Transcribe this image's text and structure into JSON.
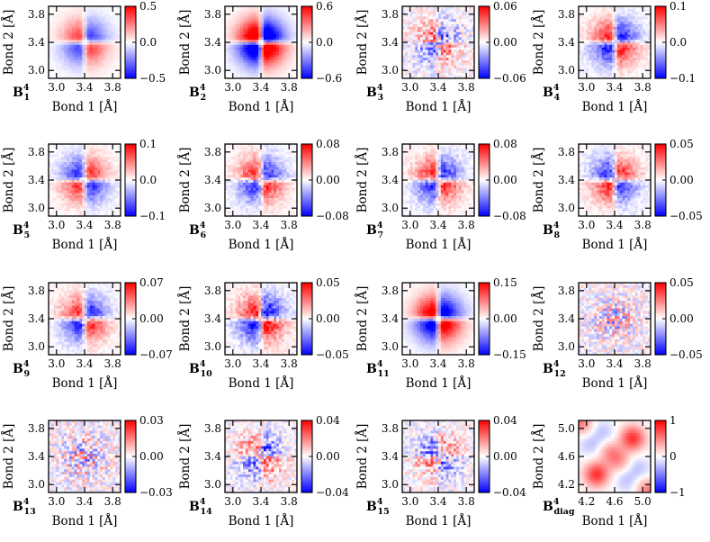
{
  "chart_data": [
    {
      "type": "heatmap",
      "label": "B",
      "sup": "4",
      "sub": "1",
      "xlabel": "Bond 1 [Å]",
      "ylabel": "Bond 2 [Å]",
      "xticks": [
        "3.0",
        "3.4",
        "3.8"
      ],
      "yticks": [
        "3.8",
        "3.4",
        "3.0"
      ],
      "colorbar_ticks": [
        "0.5",
        "0.0",
        "−0.5"
      ],
      "pattern": "smooth",
      "amplitude": 0.5,
      "sign": 1,
      "noise": 0.05
    },
    {
      "type": "heatmap",
      "label": "B",
      "sup": "4",
      "sub": "2",
      "xlabel": "Bond 1 [Å]",
      "ylabel": "Bond 2 [Å]",
      "xticks": [
        "3.0",
        "3.4",
        "3.8"
      ],
      "yticks": [
        "3.8",
        "3.4",
        "3.0"
      ],
      "colorbar_ticks": [
        "0.6",
        "0.0",
        "−0.6"
      ],
      "pattern": "smooth",
      "amplitude": 0.95,
      "sign": 1,
      "noise": 0.05
    },
    {
      "type": "heatmap",
      "label": "B",
      "sup": "4",
      "sub": "3",
      "xlabel": "Bond 1 [Å]",
      "ylabel": "Bond 2 [Å]",
      "xticks": [
        "3.0",
        "3.4",
        "3.8"
      ],
      "yticks": [
        "3.8",
        "3.4",
        "3.0"
      ],
      "colorbar_ticks": [
        "0.06",
        "0.00",
        "−0.06"
      ],
      "pattern": "noisy",
      "amplitude": 0.3,
      "sign": 1,
      "noise": 0.45
    },
    {
      "type": "heatmap",
      "label": "B",
      "sup": "4",
      "sub": "4",
      "xlabel": "Bond 1 [Å]",
      "ylabel": "Bond 2 [Å]",
      "xticks": [
        "3.0",
        "3.4",
        "3.8"
      ],
      "yticks": [
        "3.8",
        "3.4",
        "3.0"
      ],
      "colorbar_ticks": [
        "0.1",
        "0.0",
        "−0.1"
      ],
      "pattern": "quad",
      "amplitude": 0.6,
      "sign": 1,
      "noise": 0.18
    },
    {
      "type": "heatmap",
      "label": "B",
      "sup": "4",
      "sub": "5",
      "xlabel": "Bond 1 [Å]",
      "ylabel": "Bond 2 [Å]",
      "xticks": [
        "3.0",
        "3.4",
        "3.8"
      ],
      "yticks": [
        "3.8",
        "3.4",
        "3.0"
      ],
      "colorbar_ticks": [
        "0.1",
        "0.0",
        "−0.1"
      ],
      "pattern": "quad",
      "amplitude": 0.55,
      "sign": -1,
      "noise": 0.15
    },
    {
      "type": "heatmap",
      "label": "B",
      "sup": "4",
      "sub": "6",
      "xlabel": "Bond 1 [Å]",
      "ylabel": "Bond 2 [Å]",
      "xticks": [
        "3.0",
        "3.4",
        "3.8"
      ],
      "yticks": [
        "3.8",
        "3.4",
        "3.0"
      ],
      "colorbar_ticks": [
        "0.08",
        "0.00",
        "−0.08"
      ],
      "pattern": "quad",
      "amplitude": 0.55,
      "sign": 1,
      "noise": 0.2
    },
    {
      "type": "heatmap",
      "label": "B",
      "sup": "4",
      "sub": "7",
      "xlabel": "Bond 1 [Å]",
      "ylabel": "Bond 2 [Å]",
      "xticks": [
        "3.0",
        "3.4",
        "3.8"
      ],
      "yticks": [
        "3.8",
        "3.4",
        "3.0"
      ],
      "colorbar_ticks": [
        "0.08",
        "0.00",
        "−0.08"
      ],
      "pattern": "quad",
      "amplitude": 0.55,
      "sign": 1,
      "noise": 0.22
    },
    {
      "type": "heatmap",
      "label": "B",
      "sup": "4",
      "sub": "8",
      "xlabel": "Bond 1 [Å]",
      "ylabel": "Bond 2 [Å]",
      "xticks": [
        "3.0",
        "3.4",
        "3.8"
      ],
      "yticks": [
        "3.8",
        "3.4",
        "3.0"
      ],
      "colorbar_ticks": [
        "0.05",
        "0.00",
        "−0.05"
      ],
      "pattern": "quad",
      "amplitude": 0.55,
      "sign": -1,
      "noise": 0.22
    },
    {
      "type": "heatmap",
      "label": "B",
      "sup": "4",
      "sub": "9",
      "xlabel": "Bond 1 [Å]",
      "ylabel": "Bond 2 [Å]",
      "xticks": [
        "3.0",
        "3.4",
        "3.8"
      ],
      "yticks": [
        "3.8",
        "3.4",
        "3.0"
      ],
      "colorbar_ticks": [
        "0.07",
        "0.00",
        "−0.07"
      ],
      "pattern": "quad",
      "amplitude": 0.55,
      "sign": 1,
      "noise": 0.18
    },
    {
      "type": "heatmap",
      "label": "B",
      "sup": "4",
      "sub": "10",
      "xlabel": "Bond 1 [Å]",
      "ylabel": "Bond 2 [Å]",
      "xticks": [
        "3.0",
        "3.4",
        "3.8"
      ],
      "yticks": [
        "3.8",
        "3.4",
        "3.0"
      ],
      "colorbar_ticks": [
        "0.05",
        "0.00",
        "−0.05"
      ],
      "pattern": "quad",
      "amplitude": 0.65,
      "sign": 1,
      "noise": 0.25
    },
    {
      "type": "heatmap",
      "label": "B",
      "sup": "4",
      "sub": "11",
      "xlabel": "Bond 1 [Å]",
      "ylabel": "Bond 2 [Å]",
      "xticks": [
        "3.0",
        "3.4",
        "3.8"
      ],
      "yticks": [
        "3.8",
        "3.4",
        "3.0"
      ],
      "colorbar_ticks": [
        "0.15",
        "0.00",
        "−0.15"
      ],
      "pattern": "smooth",
      "amplitude": 0.8,
      "sign": 1,
      "noise": 0.06
    },
    {
      "type": "heatmap",
      "label": "B",
      "sup": "4",
      "sub": "12",
      "xlabel": "Bond 1 [Å]",
      "ylabel": "Bond 2 [Å]",
      "xticks": [
        "3.0",
        "3.4",
        "3.8"
      ],
      "yticks": [
        "3.8",
        "3.4",
        "3.0"
      ],
      "colorbar_ticks": [
        "0.05",
        "0.00",
        "−0.05"
      ],
      "pattern": "noise",
      "amplitude": 0.0,
      "sign": 1,
      "noise": 0.5
    },
    {
      "type": "heatmap",
      "label": "B",
      "sup": "4",
      "sub": "13",
      "xlabel": "Bond 1 [Å]",
      "ylabel": "Bond 2 [Å]",
      "xticks": [
        "3.0",
        "3.4",
        "3.8"
      ],
      "yticks": [
        "3.8",
        "3.4",
        "3.0"
      ],
      "colorbar_ticks": [
        "0.03",
        "0.00",
        "−0.03"
      ],
      "pattern": "noise",
      "amplitude": 0.0,
      "sign": 1,
      "noise": 0.55
    },
    {
      "type": "heatmap",
      "label": "B",
      "sup": "4",
      "sub": "14",
      "xlabel": "Bond 1 [Å]",
      "ylabel": "Bond 2 [Å]",
      "xticks": [
        "3.0",
        "3.4",
        "3.8"
      ],
      "yticks": [
        "3.8",
        "3.4",
        "3.0"
      ],
      "colorbar_ticks": [
        "0.04",
        "0.00",
        "−0.04"
      ],
      "pattern": "noisy",
      "amplitude": 0.35,
      "sign": 1,
      "noise": 0.45
    },
    {
      "type": "heatmap",
      "label": "B",
      "sup": "4",
      "sub": "15",
      "xlabel": "Bond 1 [Å]",
      "ylabel": "Bond 2 [Å]",
      "xticks": [
        "3.0",
        "3.4",
        "3.8"
      ],
      "yticks": [
        "3.8",
        "3.4",
        "3.0"
      ],
      "colorbar_ticks": [
        "0.04",
        "0.00",
        "−0.04"
      ],
      "pattern": "noisy",
      "amplitude": 0.3,
      "sign": -1,
      "noise": 0.45
    },
    {
      "type": "heatmap",
      "label": "B",
      "sup": "4",
      "sub": "diag",
      "xlabel": "Bond 1 [Å]",
      "ylabel": "Bond 2 [Å]",
      "xticks": [
        "4.2",
        "4.6",
        "5.0"
      ],
      "yticks": [
        "5.0",
        "4.6",
        "4.2"
      ],
      "colorbar_ticks": [
        "1",
        "0",
        "−1"
      ],
      "pattern": "diag",
      "amplitude": 1.0,
      "sign": 1,
      "noise": 0.0
    }
  ]
}
